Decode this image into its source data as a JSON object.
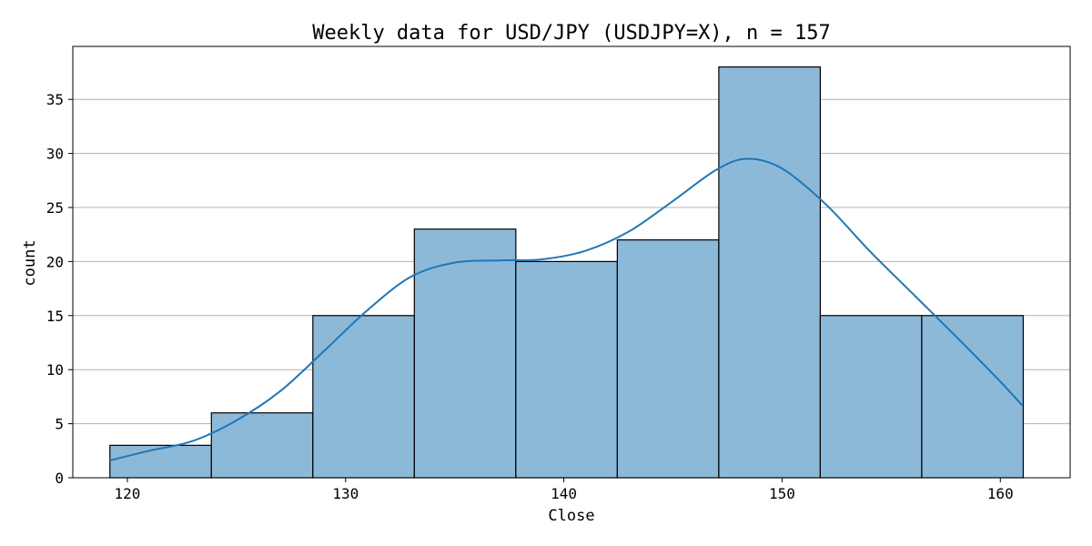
{
  "chart_data": {
    "type": "bar",
    "title": "Weekly data for USD/JPY (USDJPY=X), n = 157",
    "xlabel": "Close",
    "ylabel": "count",
    "xlim": [
      117.5,
      163.2
    ],
    "ylim": [
      0,
      39.9
    ],
    "bin_edges": [
      119.2,
      123.85,
      128.5,
      133.15,
      137.8,
      142.45,
      147.1,
      151.75,
      156.4,
      161.05
    ],
    "values": [
      3,
      6,
      15,
      23,
      20,
      22,
      38,
      15,
      15
    ],
    "x_ticks": [
      120,
      130,
      140,
      150,
      160
    ],
    "y_ticks": [
      0,
      5,
      10,
      15,
      20,
      25,
      30,
      35
    ],
    "grid": "y",
    "kde": {
      "x": [
        119.2,
        121.0,
        123.0,
        125.0,
        127.0,
        129.0,
        131.0,
        133.0,
        135.0,
        137.0,
        139.0,
        141.0,
        143.0,
        145.0,
        147.0,
        148.4,
        150.0,
        152.0,
        154.0,
        156.0,
        158.0,
        160.0,
        161.0
      ],
      "y": [
        1.6,
        2.5,
        3.4,
        5.3,
        8.0,
        11.7,
        15.5,
        18.6,
        19.9,
        20.1,
        20.2,
        21.0,
        22.8,
        25.6,
        28.5,
        29.5,
        28.6,
        25.3,
        21.0,
        17.0,
        13.0,
        8.9,
        6.7
      ]
    },
    "colors": {
      "bar_fill": "#8db9d9",
      "bar_edge": "#000000",
      "kde_line": "#1f77b4",
      "grid": "#b0b0b0"
    }
  }
}
